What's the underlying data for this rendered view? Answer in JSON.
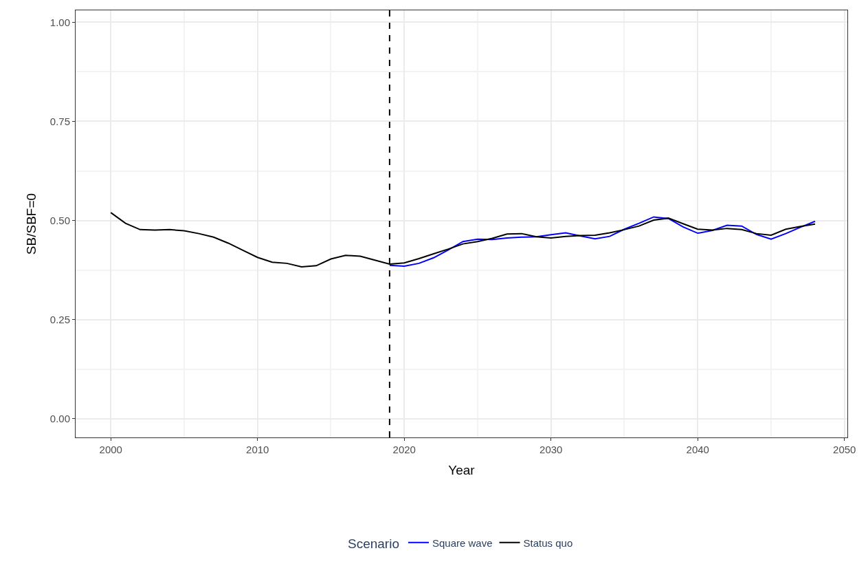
{
  "chart_data": {
    "type": "line",
    "xlabel": "Year",
    "ylabel": "SB/SBF=0",
    "legend_title": "Scenario",
    "legend": "bottom",
    "grid": true,
    "xlim": [
      1997.6,
      2050.2
    ],
    "xticks": [
      2000,
      2010,
      2020,
      2030,
      2040,
      2050
    ],
    "ylim": [
      -0.047,
      1.03
    ],
    "yticks": [
      {
        "value": 0,
        "label": "0.00"
      },
      {
        "value": 0.25,
        "label": "0.25"
      },
      {
        "value": 0.5,
        "label": "0.50"
      },
      {
        "value": 0.75,
        "label": "0.75"
      },
      {
        "value": 1,
        "label": "1.00"
      }
    ],
    "ref_lines": [
      {
        "axis": "x",
        "value": 2019,
        "label": null,
        "color": "#000000",
        "line_style": "dashed"
      }
    ],
    "series": [
      {
        "name": "Square wave",
        "color": "#0000ff",
        "x": [
          2019,
          2020,
          2021,
          2022,
          2023,
          2024,
          2025,
          2026,
          2027,
          2028,
          2029,
          2030,
          2031,
          2032,
          2033,
          2034,
          2035,
          2036,
          2037,
          2038,
          2039,
          2040,
          2041,
          2042,
          2043,
          2044,
          2045,
          2046,
          2047,
          2048
        ],
        "values": [
          0.387,
          0.385,
          0.392,
          0.406,
          0.426,
          0.447,
          0.453,
          0.452,
          0.456,
          0.458,
          0.459,
          0.464,
          0.469,
          0.461,
          0.454,
          0.46,
          0.478,
          0.493,
          0.509,
          0.505,
          0.484,
          0.468,
          0.475,
          0.488,
          0.486,
          0.465,
          0.453,
          0.467,
          0.483,
          0.498
        ]
      },
      {
        "name": "Status quo",
        "color": "#000000",
        "x": [
          2000,
          2001,
          2002,
          2003,
          2004,
          2005,
          2006,
          2007,
          2008,
          2009,
          2010,
          2011,
          2012,
          2013,
          2014,
          2015,
          2016,
          2017,
          2018,
          2019,
          2020,
          2021,
          2022,
          2023,
          2024,
          2025,
          2026,
          2027,
          2028,
          2029,
          2030,
          2031,
          2032,
          2033,
          2034,
          2035,
          2036,
          2037,
          2038,
          2039,
          2040,
          2041,
          2042,
          2043,
          2044,
          2045,
          2046,
          2047,
          2048
        ],
        "values": [
          0.52,
          0.493,
          0.477,
          0.476,
          0.477,
          0.474,
          0.467,
          0.458,
          0.443,
          0.425,
          0.407,
          0.395,
          0.392,
          0.383,
          0.386,
          0.403,
          0.412,
          0.41,
          0.4,
          0.39,
          0.393,
          0.404,
          0.416,
          0.428,
          0.441,
          0.447,
          0.455,
          0.466,
          0.467,
          0.459,
          0.456,
          0.46,
          0.462,
          0.463,
          0.469,
          0.477,
          0.486,
          0.501,
          0.506,
          0.492,
          0.478,
          0.476,
          0.48,
          0.477,
          0.467,
          0.463,
          0.478,
          0.485,
          0.491
        ]
      }
    ]
  }
}
